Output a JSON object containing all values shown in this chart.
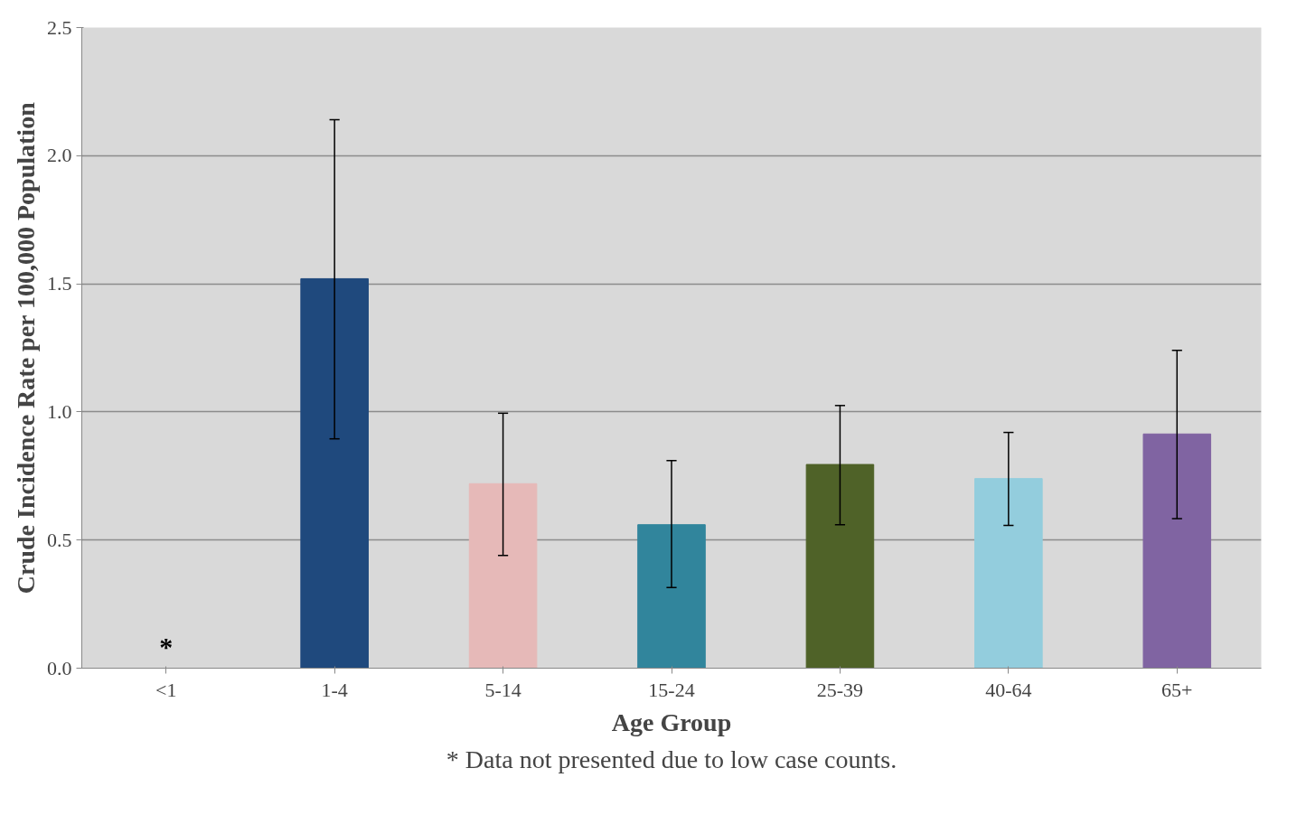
{
  "chart_data": {
    "type": "bar",
    "xlabel": "Age Group",
    "ylabel": "Crude Incidence Rate per 100,000 Population",
    "categories": [
      "<1",
      "1-4",
      "5-14",
      "15-24",
      "25-39",
      "40-64",
      "65+"
    ],
    "values": [
      null,
      1.52,
      0.72,
      0.56,
      0.795,
      0.74,
      0.914
    ],
    "colors": [
      "#1f497d",
      "#1f497d",
      "#e6b9b8",
      "#31859c",
      "#4f6228",
      "#93cddd",
      "#8064a2"
    ],
    "errors": [
      null,
      [
        0.895,
        2.14
      ],
      [
        0.44,
        0.995
      ],
      [
        0.315,
        0.81
      ],
      [
        0.56,
        1.025
      ],
      [
        0.557,
        0.92
      ],
      [
        0.584,
        1.24
      ]
    ],
    "ylim": [
      0,
      2.5
    ],
    "yticks": [
      {
        "value": 0,
        "label": "0.0"
      },
      {
        "value": 0.5,
        "label": "0.5"
      },
      {
        "value": 1,
        "label": "1.0"
      },
      {
        "value": 1.5,
        "label": "1.5"
      },
      {
        "value": 2,
        "label": "2.0"
      },
      {
        "value": 2.5,
        "label": "2.5"
      }
    ],
    "grid": "y",
    "annotations": [
      "*",
      "* Data not presented due to low case counts."
    ]
  }
}
